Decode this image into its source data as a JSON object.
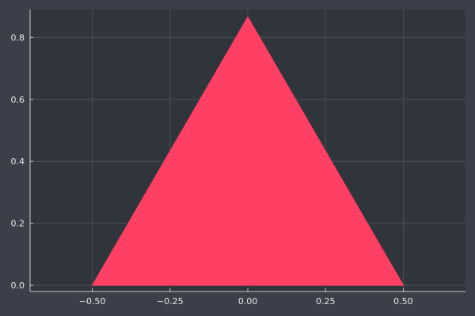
{
  "colors": {
    "figure_background": "#3a3f4a",
    "plot_background": "#30343b",
    "grid": "#4a505b",
    "axis": "#c8c8c8",
    "tick_text": "#e8e8e8",
    "fill": "#ff3f63"
  },
  "chart_data": {
    "type": "area",
    "title": "",
    "xlabel": "",
    "ylabel": "",
    "xlim": [
      -0.7,
      0.7
    ],
    "ylim": [
      -0.02,
      0.89
    ],
    "grid": true,
    "legend": "none",
    "x_ticks": [
      -0.5,
      -0.25,
      0.0,
      0.25,
      0.5
    ],
    "x_tick_labels": [
      "−0.50",
      "−0.25",
      "0.00",
      "0.25",
      "0.50"
    ],
    "y_ticks": [
      0.0,
      0.2,
      0.4,
      0.6,
      0.8
    ],
    "y_tick_labels": [
      "0.0",
      "0.2",
      "0.4",
      "0.6",
      "0.8"
    ],
    "series": [
      {
        "x": [
          -0.5,
          0.0,
          0.5
        ],
        "y": [
          0.0,
          0.866,
          0.0
        ],
        "color": "#ff3f63",
        "fill": true
      }
    ]
  }
}
